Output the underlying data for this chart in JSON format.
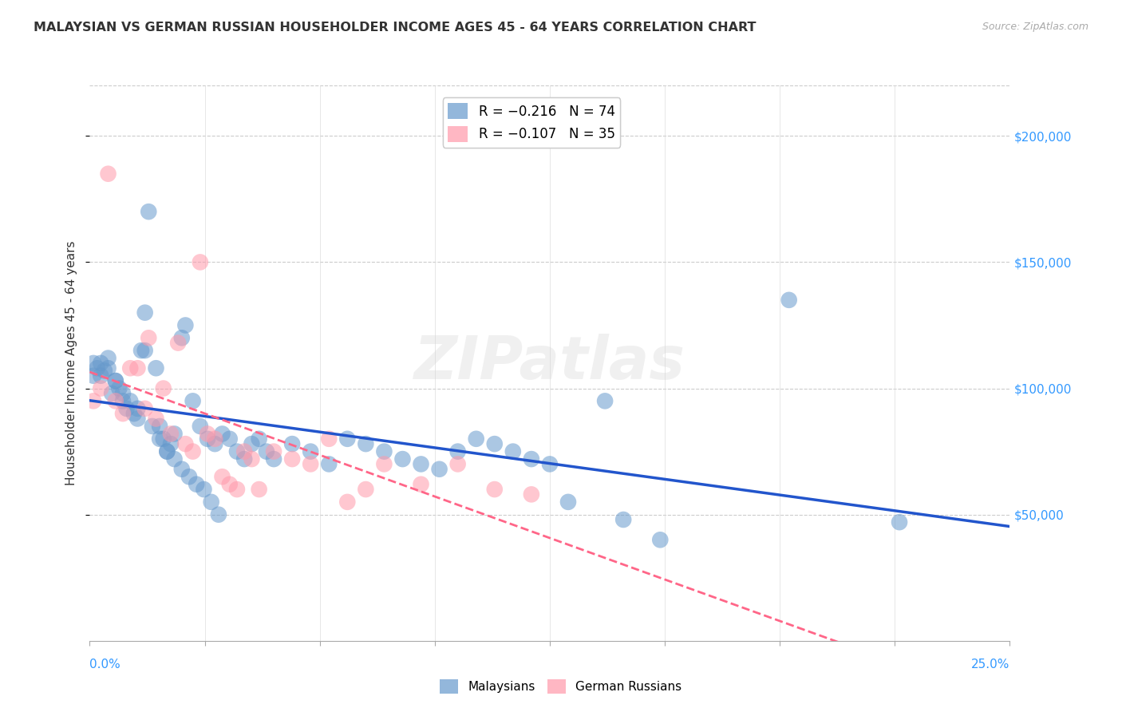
{
  "title": "MALAYSIAN VS GERMAN RUSSIAN HOUSEHOLDER INCOME AGES 45 - 64 YEARS CORRELATION CHART",
  "source": "Source: ZipAtlas.com",
  "ylabel": "Householder Income Ages 45 - 64 years",
  "ylim": [
    0,
    220000
  ],
  "xlim": [
    0,
    0.25
  ],
  "yticks": [
    50000,
    100000,
    150000,
    200000
  ],
  "ytick_labels": [
    "$50,000",
    "$100,000",
    "$150,000",
    "$200,000"
  ],
  "xticks": [
    0.0,
    0.03125,
    0.0625,
    0.09375,
    0.125,
    0.15625,
    0.1875,
    0.21875,
    0.25
  ],
  "blue_color": "#6699cc",
  "pink_color": "#ff99aa",
  "blue_line_color": "#2255cc",
  "pink_line_color": "#ff6688",
  "watermark": "ZIPatlas",
  "malaysians_x": [
    0.001,
    0.002,
    0.003,
    0.004,
    0.005,
    0.006,
    0.007,
    0.008,
    0.009,
    0.01,
    0.012,
    0.013,
    0.014,
    0.015,
    0.016,
    0.018,
    0.019,
    0.02,
    0.021,
    0.022,
    0.023,
    0.025,
    0.026,
    0.028,
    0.03,
    0.032,
    0.034,
    0.036,
    0.038,
    0.04,
    0.042,
    0.044,
    0.046,
    0.048,
    0.05,
    0.055,
    0.06,
    0.065,
    0.07,
    0.075,
    0.08,
    0.085,
    0.09,
    0.095,
    0.1,
    0.105,
    0.11,
    0.115,
    0.12,
    0.125,
    0.001,
    0.003,
    0.005,
    0.007,
    0.009,
    0.011,
    0.013,
    0.015,
    0.017,
    0.019,
    0.021,
    0.023,
    0.025,
    0.027,
    0.029,
    0.031,
    0.033,
    0.035,
    0.14,
    0.19,
    0.13,
    0.145,
    0.155,
    0.22
  ],
  "malaysians_y": [
    105000,
    108000,
    110000,
    107000,
    112000,
    98000,
    103000,
    100000,
    95000,
    92000,
    90000,
    88000,
    115000,
    130000,
    170000,
    108000,
    85000,
    80000,
    75000,
    78000,
    82000,
    120000,
    125000,
    95000,
    85000,
    80000,
    78000,
    82000,
    80000,
    75000,
    72000,
    78000,
    80000,
    75000,
    72000,
    78000,
    75000,
    70000,
    80000,
    78000,
    75000,
    72000,
    70000,
    68000,
    75000,
    80000,
    78000,
    75000,
    72000,
    70000,
    110000,
    105000,
    108000,
    103000,
    98000,
    95000,
    92000,
    115000,
    85000,
    80000,
    75000,
    72000,
    68000,
    65000,
    62000,
    60000,
    55000,
    50000,
    95000,
    135000,
    55000,
    48000,
    40000,
    47000
  ],
  "german_russians_x": [
    0.001,
    0.003,
    0.005,
    0.007,
    0.009,
    0.011,
    0.013,
    0.015,
    0.016,
    0.018,
    0.02,
    0.022,
    0.024,
    0.026,
    0.028,
    0.03,
    0.032,
    0.034,
    0.036,
    0.038,
    0.04,
    0.042,
    0.044,
    0.046,
    0.05,
    0.055,
    0.06,
    0.065,
    0.07,
    0.075,
    0.08,
    0.09,
    0.1,
    0.11,
    0.12
  ],
  "german_russians_y": [
    95000,
    100000,
    185000,
    95000,
    90000,
    108000,
    108000,
    92000,
    120000,
    88000,
    100000,
    82000,
    118000,
    78000,
    75000,
    150000,
    82000,
    80000,
    65000,
    62000,
    60000,
    75000,
    72000,
    60000,
    75000,
    72000,
    70000,
    80000,
    55000,
    60000,
    70000,
    62000,
    70000,
    60000,
    58000
  ]
}
